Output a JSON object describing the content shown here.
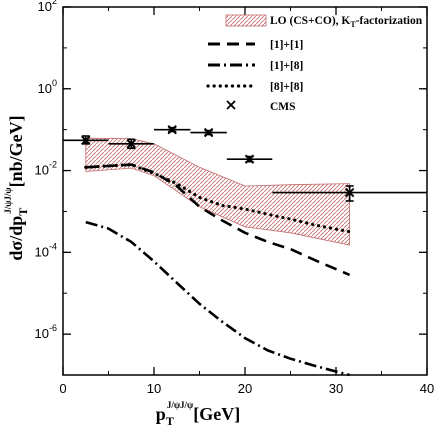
{
  "chart_data": {
    "type": "line",
    "title": "",
    "xlabel": {
      "main": "p",
      "sub": "T",
      "sup": "J/ψJ/ψ",
      "unit": "[GeV]"
    },
    "ylabel": {
      "main": "dσ/dp",
      "sub": "T",
      "sup": "J/ψJ/ψ",
      "unit": "[nb/GeV]"
    },
    "xlim": [
      0,
      40
    ],
    "ylim": [
      1e-07,
      100
    ],
    "yscale": "log",
    "xticks": [
      "0",
      "10",
      "20",
      "30",
      "40"
    ],
    "yticks": [
      {
        "base": "10",
        "exp": "2",
        "value": 100
      },
      {
        "base": "10",
        "exp": "0",
        "value": 1
      },
      {
        "base": "10",
        "exp": "-2",
        "value": 0.01
      },
      {
        "base": "10",
        "exp": "-4",
        "value": 0.0001
      },
      {
        "base": "10",
        "exp": "-6",
        "value": 1e-06
      }
    ],
    "legend_position": "top-right",
    "band": {
      "name": "LO (CS+CO), K",
      "name_sub": "T",
      "name_suffix": "-factorization",
      "color": "#c46a6a",
      "upper": [
        [
          2.5,
          0.062
        ],
        [
          7.5,
          0.06
        ],
        [
          10,
          0.045
        ],
        [
          15,
          0.012
        ],
        [
          20,
          0.0042
        ],
        [
          25,
          0.0045
        ],
        [
          31.5,
          0.0048
        ]
      ],
      "lower": [
        [
          2.5,
          0.0095
        ],
        [
          7.5,
          0.0115
        ],
        [
          10,
          0.0075
        ],
        [
          15,
          0.0013
        ],
        [
          20,
          0.00042
        ],
        [
          25,
          0.0003
        ],
        [
          31.5,
          0.00015
        ]
      ]
    },
    "series": [
      {
        "name": "[1]+[1]",
        "dash": "dashed",
        "points": [
          [
            2.5,
            0.012
          ],
          [
            5,
            0.013
          ],
          [
            7.5,
            0.014
          ],
          [
            10,
            0.009
          ],
          [
            12.5,
            0.0042
          ],
          [
            15,
            0.0013
          ],
          [
            17.5,
            0.0006
          ],
          [
            20,
            0.0003
          ],
          [
            22.5,
            0.00018
          ],
          [
            25,
            0.00012
          ],
          [
            28,
            6e-05
          ],
          [
            31.5,
            2.8e-05
          ]
        ]
      },
      {
        "name": "[1]+[8]",
        "dash": "dash-dot",
        "points": [
          [
            2.5,
            0.00055
          ],
          [
            5,
            0.00038
          ],
          [
            7.5,
            0.00018
          ],
          [
            10,
            6e-05
          ],
          [
            12.5,
            1.8e-05
          ],
          [
            15,
            5.5e-06
          ],
          [
            17.5,
            2e-06
          ],
          [
            20,
            8e-07
          ],
          [
            22.5,
            4e-07
          ],
          [
            25,
            2.5e-07
          ],
          [
            28,
            1.6e-07
          ],
          [
            31.5,
            1e-07
          ]
        ]
      },
      {
        "name": "[8]+[8]",
        "dash": "dotted",
        "points": [
          [
            2.5,
            0.012
          ],
          [
            5,
            0.013
          ],
          [
            7.5,
            0.014
          ],
          [
            10,
            0.0085
          ],
          [
            12.5,
            0.0048
          ],
          [
            15,
            0.0022
          ],
          [
            17.5,
            0.0014
          ],
          [
            20,
            0.00115
          ],
          [
            22.5,
            0.00085
          ],
          [
            25,
            0.00065
          ],
          [
            28,
            0.00045
          ],
          [
            31.5,
            0.00032
          ]
        ]
      }
    ],
    "data_points": {
      "name": "CMS",
      "points": [
        {
          "x": 2.5,
          "y": 0.055,
          "xlo": 0,
          "xhi": 5,
          "ylo": 0.045,
          "yhi": 0.07
        },
        {
          "x": 7.5,
          "y": 0.045,
          "xlo": 5,
          "xhi": 10,
          "ylo": 0.035,
          "yhi": 0.058
        },
        {
          "x": 12,
          "y": 0.1,
          "xlo": 10,
          "xhi": 14,
          "ylo": 0.09,
          "yhi": 0.112
        },
        {
          "x": 16,
          "y": 0.085,
          "xlo": 14,
          "xhi": 18,
          "ylo": 0.076,
          "yhi": 0.095
        },
        {
          "x": 20.5,
          "y": 0.019,
          "xlo": 18,
          "xhi": 23,
          "ylo": 0.0165,
          "yhi": 0.022
        },
        {
          "x": 31.5,
          "y": 0.0029,
          "xlo": 23,
          "xhi": 40,
          "ylo": 0.0018,
          "yhi": 0.0042
        }
      ]
    }
  }
}
